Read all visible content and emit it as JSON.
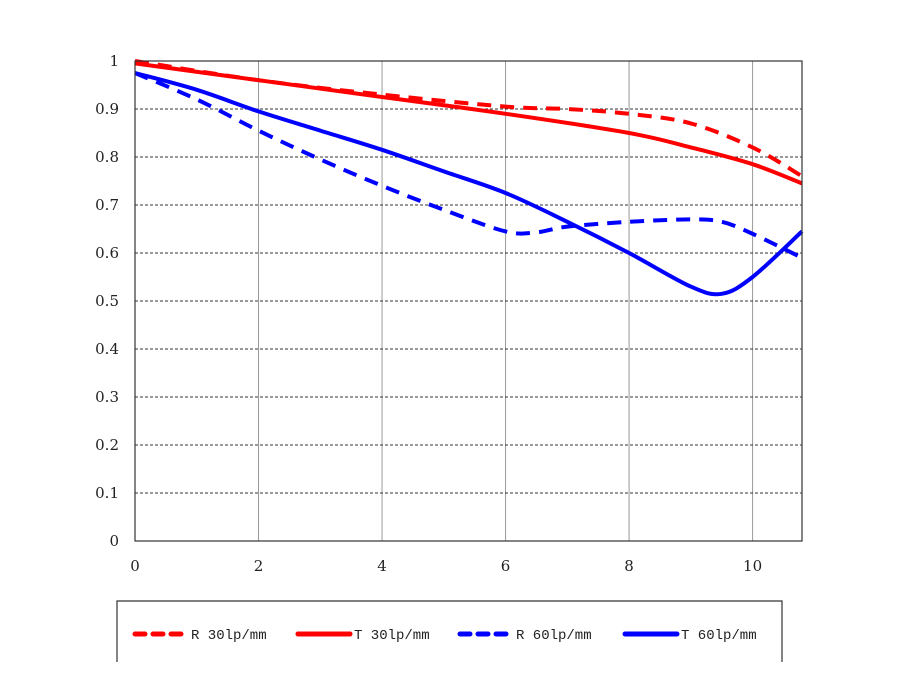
{
  "chart_data": {
    "type": "line",
    "title": "",
    "xlabel": "",
    "ylabel": "",
    "xlim": [
      0,
      10.8
    ],
    "ylim": [
      0,
      1
    ],
    "x_ticks": [
      "0",
      "2",
      "4",
      "6",
      "8",
      "10"
    ],
    "y_ticks": [
      "0",
      "0.1",
      "0.2",
      "0.3",
      "0.4",
      "0.5",
      "0.6",
      "0.7",
      "0.8",
      "0.9",
      "1"
    ],
    "grid": "vertical solid gray, horizontal dashed dark",
    "legend_placement": "bottom",
    "series": [
      {
        "name": "R 30lp/mm",
        "color": "#ff0000",
        "style": "dashed",
        "x": [
          0,
          2,
          4,
          6,
          7,
          8,
          9,
          10,
          10.8
        ],
        "y": [
          1.0,
          0.96,
          0.93,
          0.905,
          0.9,
          0.89,
          0.87,
          0.82,
          0.76
        ]
      },
      {
        "name": "T 30lp/mm",
        "color": "#ff0000",
        "style": "solid",
        "x": [
          0,
          2,
          4,
          6,
          8,
          9,
          10,
          10.8
        ],
        "y": [
          0.995,
          0.96,
          0.925,
          0.89,
          0.85,
          0.82,
          0.785,
          0.745
        ]
      },
      {
        "name": "R 60lp/mm",
        "color": "#0000ff",
        "style": "dashed",
        "x": [
          0,
          1,
          2,
          3,
          4,
          5,
          6,
          6.5,
          7,
          8,
          9,
          9.5,
          10,
          10.8
        ],
        "y": [
          0.975,
          0.92,
          0.855,
          0.795,
          0.74,
          0.69,
          0.645,
          0.643,
          0.655,
          0.665,
          0.67,
          0.665,
          0.64,
          0.59
        ]
      },
      {
        "name": "T 60lp/mm",
        "color": "#0000ff",
        "style": "solid",
        "x": [
          0,
          1,
          2,
          3,
          4,
          5,
          6,
          7,
          8,
          9,
          9.5,
          10,
          10.8
        ],
        "y": [
          0.975,
          0.94,
          0.895,
          0.855,
          0.815,
          0.77,
          0.725,
          0.665,
          0.6,
          0.53,
          0.515,
          0.55,
          0.645
        ]
      }
    ]
  }
}
